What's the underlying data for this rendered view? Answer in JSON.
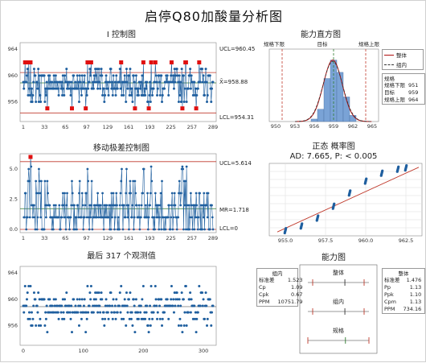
{
  "title": "启停Q80加酸量分析图",
  "colors": {
    "series": "#1f5f9f",
    "limit": "#c0392b",
    "fail": "#e01010",
    "bar": "#7aa3d6",
    "fit": "#b01010",
    "center": "#2d7a2d"
  },
  "panels": {
    "i_chart": {
      "title": "I 控制图",
      "ucl": "UCL=960.45",
      "center": "X̄=958.88",
      "lcl": "LCL=954.31",
      "xticks": [
        "1",
        "33",
        "65",
        "97",
        "129",
        "161",
        "193",
        "225",
        "257",
        "289"
      ],
      "yticks": [
        "964",
        "960",
        "956"
      ]
    },
    "mr_chart": {
      "title": "移动极差控制图",
      "ucl": "UCL=5.614",
      "center": "MR=1.718",
      "lcl": "LCL=0",
      "xticks": [
        "1",
        "33",
        "65",
        "97",
        "129",
        "161",
        "193",
        "225",
        "257",
        "289"
      ],
      "yticks": [
        "5.0",
        "2.5",
        "0.0"
      ]
    },
    "last_obs": {
      "title": "最后 317 个观测值",
      "xticks": [
        "0",
        "100",
        "200",
        "300"
      ],
      "yticks": [
        "964",
        "960",
        "956"
      ]
    },
    "hist": {
      "title": "能力直方图",
      "lsl_label": "规格下限",
      "target_label": "目标",
      "usl_label": "规格上限",
      "xticks": [
        "950",
        "953",
        "956",
        "959",
        "962",
        "965"
      ],
      "legend": {
        "overall": "整体",
        "within": "组内"
      },
      "spec_title": "规格",
      "spec": [
        {
          "k": "规格下限",
          "v": "951"
        },
        {
          "k": "目标",
          "v": "959"
        },
        {
          "k": "规格上限",
          "v": "964"
        }
      ]
    },
    "prob": {
      "title": "正态 概率图",
      "subtitle": "AD: 7.665, P: < 0.005",
      "xticks": [
        "955.0",
        "957.5",
        "960.0",
        "962.5"
      ]
    },
    "cap": {
      "title": "能力图",
      "overall": "整体",
      "within": "组内",
      "spec": "规格",
      "within_stats_title": "组内",
      "within_stats": [
        {
          "k": "标准差",
          "v": "1.523"
        },
        {
          "k": "Cp",
          "v": "1.09"
        },
        {
          "k": "Cpk",
          "v": "0.67"
        },
        {
          "k": "PPM",
          "v": "10751.79"
        }
      ],
      "overall_stats_title": "整体",
      "overall_stats": [
        {
          "k": "标准差",
          "v": "1.476"
        },
        {
          "k": "Pp",
          "v": "1.13"
        },
        {
          "k": "Ppk",
          "v": "1.10"
        },
        {
          "k": "Cpm",
          "v": "1.13"
        },
        {
          "k": "PPM",
          "v": "734.16"
        }
      ]
    }
  },
  "chart_data": [
    {
      "type": "line",
      "name": "i_chart",
      "x_range": [
        1,
        317
      ],
      "ylim": [
        953,
        965
      ],
      "ucl": 960.45,
      "center": 958.88,
      "lcl": 954.31,
      "values_note_levels": [
        955,
        957,
        958,
        959,
        960,
        961
      ]
    },
    {
      "type": "line",
      "name": "mr_chart",
      "x_range": [
        1,
        317
      ],
      "ylim": [
        0,
        6
      ],
      "ucl": 5.614,
      "center": 1.718,
      "lcl": 0
    },
    {
      "type": "bar",
      "name": "hist",
      "categories": [
        "956",
        "957",
        "958",
        "959",
        "960",
        "961",
        "962"
      ],
      "values": [
        2,
        10,
        35,
        50,
        40,
        20,
        5
      ],
      "xlim": [
        949,
        966
      ],
      "lsl": 951,
      "target": 959,
      "usl": 964
    },
    {
      "type": "scatter",
      "name": "prob",
      "xlim": [
        954,
        963.5
      ],
      "points": [
        [
          955,
          3
        ],
        [
          956,
          10
        ],
        [
          957,
          22
        ],
        [
          958,
          40
        ],
        [
          959,
          60
        ],
        [
          960,
          78
        ],
        [
          961,
          90
        ],
        [
          962,
          96
        ],
        [
          962.5,
          98
        ]
      ]
    },
    {
      "type": "scatter",
      "name": "last_obs",
      "x_range": [
        0,
        317
      ],
      "ylim": [
        953,
        965
      ],
      "levels": [
        955,
        956,
        957,
        958,
        959,
        960,
        961,
        962
      ]
    }
  ]
}
